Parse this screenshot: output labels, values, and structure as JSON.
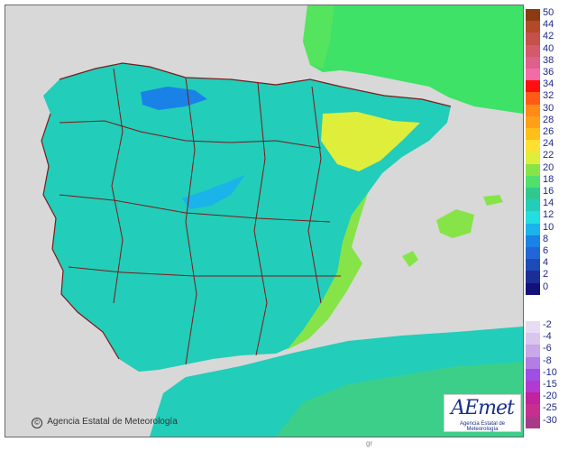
{
  "credit": {
    "text": "Agencia Estatal de Meteorología"
  },
  "logo": {
    "text": "AEmet",
    "subtitle": "Agencia Estatal de Meteorología"
  },
  "footer_mark": "gr",
  "legend": {
    "positive": [
      {
        "label": "50",
        "color": "#8b3a12"
      },
      {
        "label": "44",
        "color": "#b24a2a"
      },
      {
        "label": "42",
        "color": "#c6504a"
      },
      {
        "label": "40",
        "color": "#d25a6a"
      },
      {
        "label": "38",
        "color": "#dd5f8a"
      },
      {
        "label": "36",
        "color": "#f26aa6"
      },
      {
        "label": "34",
        "color": "#ff1010"
      },
      {
        "label": "32",
        "color": "#ff5a18"
      },
      {
        "label": "30",
        "color": "#ff8a18"
      },
      {
        "label": "28",
        "color": "#ffa018"
      },
      {
        "label": "26",
        "color": "#ffbe18"
      },
      {
        "label": "24",
        "color": "#ffe030"
      },
      {
        "label": "22",
        "color": "#dfee3a"
      },
      {
        "label": "20",
        "color": "#86e448"
      },
      {
        "label": "18",
        "color": "#52e06c"
      },
      {
        "label": "16",
        "color": "#2fc98e"
      },
      {
        "label": "14",
        "color": "#22cdb9"
      },
      {
        "label": "12",
        "color": "#22dede"
      },
      {
        "label": "10",
        "color": "#1ab3ea"
      },
      {
        "label": "8",
        "color": "#1a82e6"
      },
      {
        "label": "6",
        "color": "#2266d6"
      },
      {
        "label": "4",
        "color": "#1c4bb8"
      },
      {
        "label": "2",
        "color": "#1a2e96"
      },
      {
        "label": "0",
        "color": "#14107a"
      }
    ],
    "negative": [
      {
        "label": "-2",
        "color": "#e8dcf4"
      },
      {
        "label": "-4",
        "color": "#d9c6ee"
      },
      {
        "label": "-6",
        "color": "#c8a8e8"
      },
      {
        "label": "-8",
        "color": "#b27ee6"
      },
      {
        "label": "-10",
        "color": "#9f4ee6"
      },
      {
        "label": "-15",
        "color": "#b23ad0"
      },
      {
        "label": "-20",
        "color": "#c2229e"
      },
      {
        "label": "-25",
        "color": "#c82e90"
      },
      {
        "label": "-30",
        "color": "#a83a8a"
      }
    ]
  }
}
